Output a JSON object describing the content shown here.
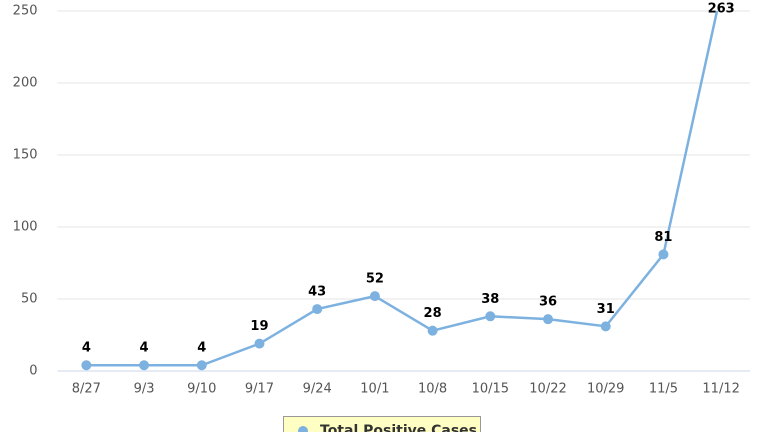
{
  "chart_data": {
    "type": "line",
    "categories": [
      "8/27",
      "9/3",
      "9/10",
      "9/17",
      "9/24",
      "10/1",
      "10/8",
      "10/15",
      "10/22",
      "10/29",
      "11/5",
      "11/12"
    ],
    "series": [
      {
        "name": "Total Positive Cases",
        "color": "#7cb1e0",
        "values": [
          4,
          4,
          4,
          19,
          43,
          52,
          28,
          38,
          36,
          31,
          81,
          263
        ]
      }
    ],
    "ylim": [
      0,
      250
    ],
    "yticks": [
      0,
      50,
      100,
      150,
      200,
      250
    ],
    "grid": true,
    "legend": "bottom"
  }
}
